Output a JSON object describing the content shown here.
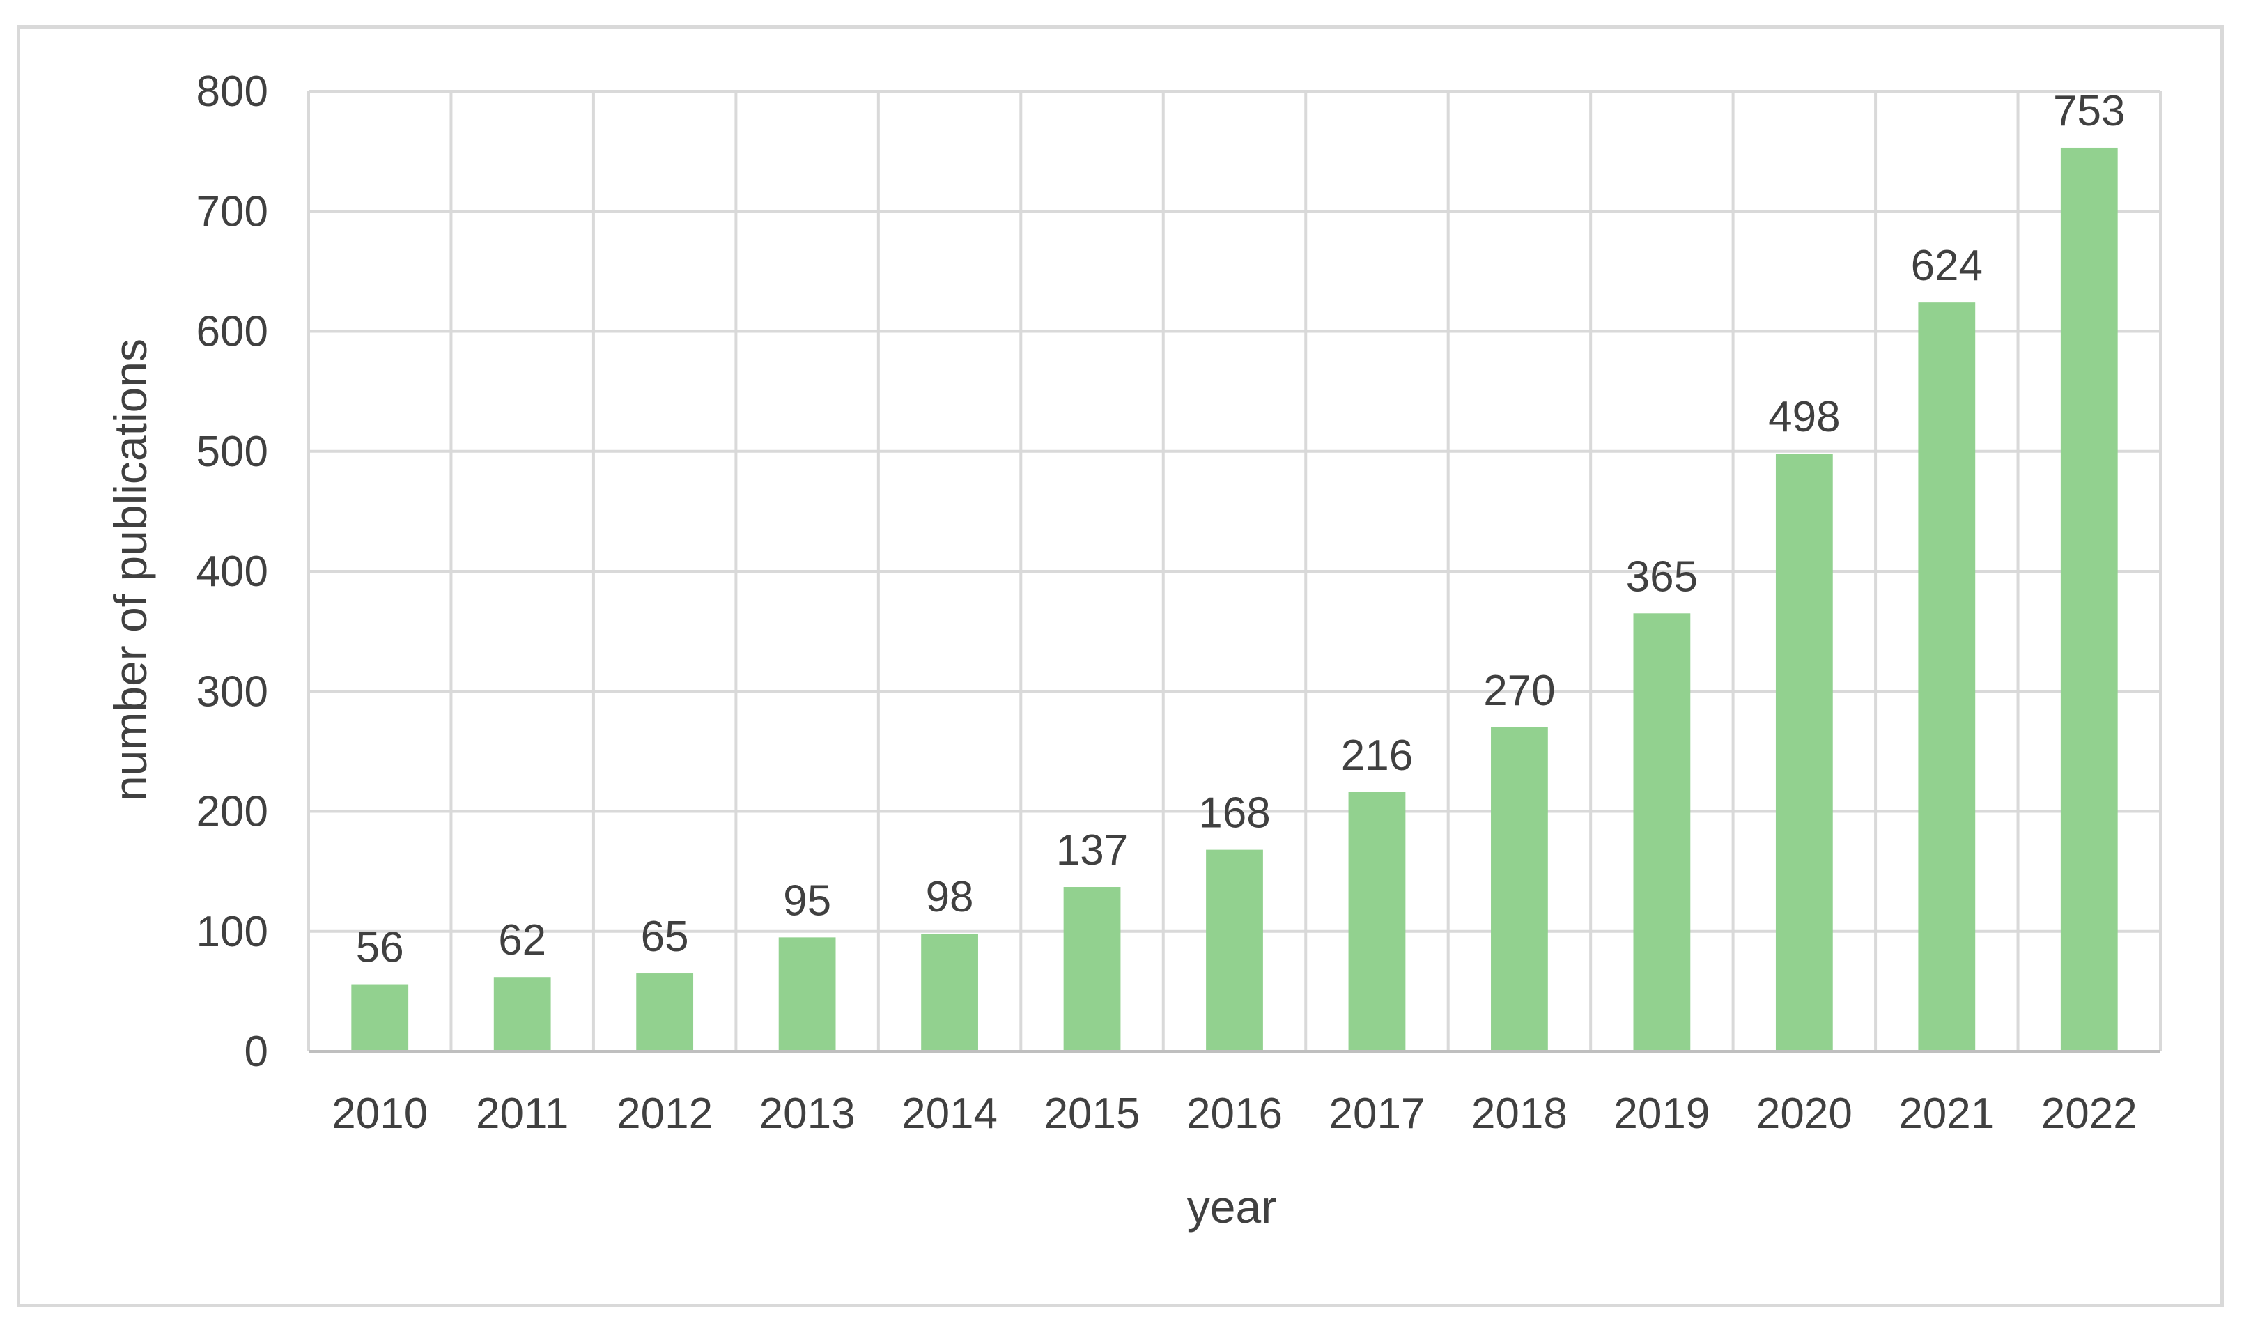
{
  "chart_data": {
    "type": "bar",
    "categories": [
      "2010",
      "2011",
      "2012",
      "2013",
      "2014",
      "2015",
      "2016",
      "2017",
      "2018",
      "2019",
      "2020",
      "2021",
      "2022"
    ],
    "values": [
      56,
      62,
      65,
      95,
      98,
      137,
      168,
      216,
      270,
      365,
      498,
      624,
      753
    ],
    "title": "",
    "xlabel": "year",
    "ylabel": "number of publications",
    "ylim": [
      0,
      800
    ],
    "yticks": [
      0,
      100,
      200,
      300,
      400,
      500,
      600,
      700,
      800
    ],
    "data_labels": true,
    "grid": true,
    "colors": {
      "bar": "#92d18f",
      "grid": "#d9d9d9",
      "axis": "#bfbfbf",
      "text": "#404040",
      "frame": "#d9d9d9"
    }
  }
}
